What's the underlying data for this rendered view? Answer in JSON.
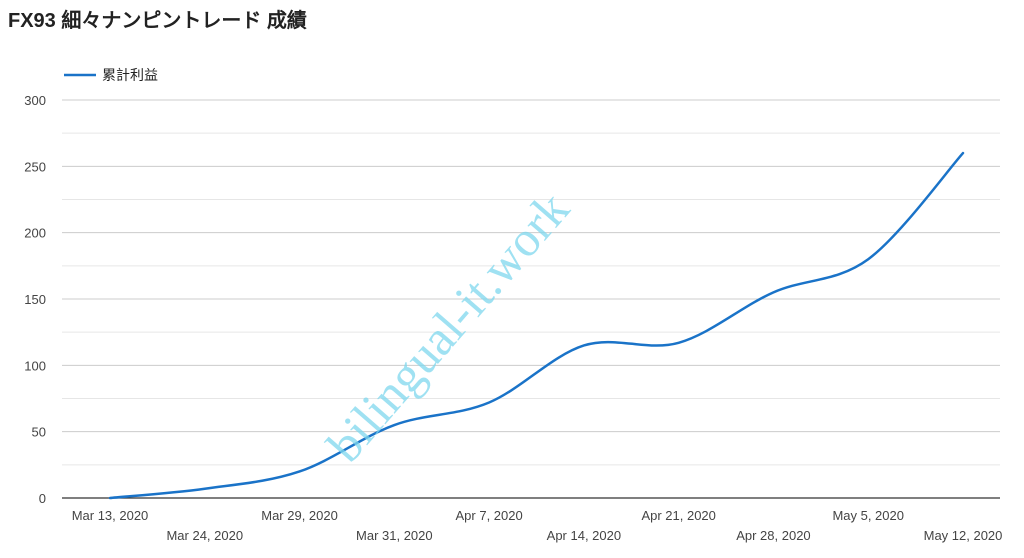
{
  "chart_data": {
    "type": "line",
    "title": "FX93 細々ナンピントレード 成績",
    "xlabel": "",
    "ylabel": "",
    "ylim": [
      0,
      300
    ],
    "yticks": [
      0,
      50,
      100,
      150,
      200,
      250,
      300
    ],
    "grid": true,
    "legend_position": "top-left",
    "categories": [
      "Mar 13, 2020",
      "Mar 24, 2020",
      "Mar 29, 2020",
      "Mar 31, 2020",
      "Apr 7, 2020",
      "Apr 14, 2020",
      "Apr 21, 2020",
      "Apr 28, 2020",
      "May 5, 2020",
      "May 12, 2020"
    ],
    "series": [
      {
        "name": "累計利益",
        "color": "#1a73c8",
        "values": [
          0,
          7,
          20,
          55,
          72,
          115,
          117,
          155,
          180,
          260
        ]
      }
    ]
  },
  "watermark": "bilingual-it.work"
}
